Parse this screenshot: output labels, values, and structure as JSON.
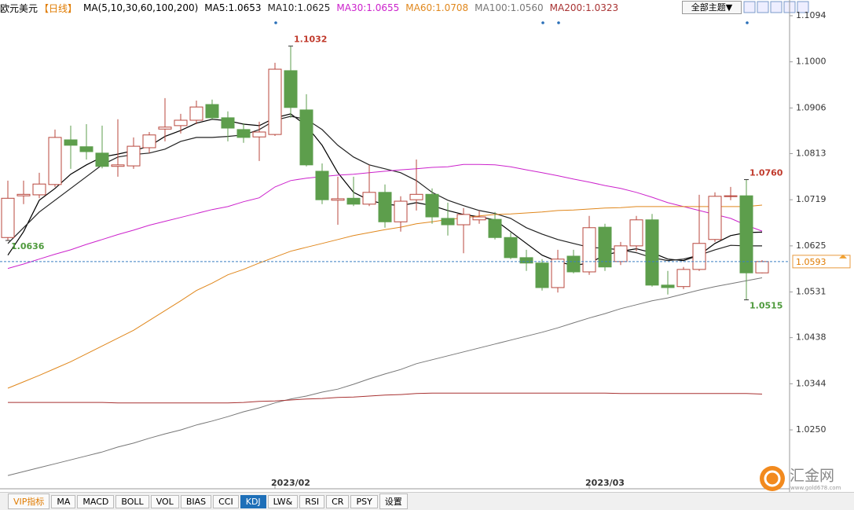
{
  "chart_data": {
    "type": "candlestick",
    "title": "欧元美元",
    "period": "【日线】",
    "indicator": "MA(5,10,30,60,100,200)",
    "theme_button": "全部主题▼",
    "categories": [
      null,
      null,
      null,
      null,
      null,
      null,
      null,
      null,
      null,
      null,
      null,
      null,
      null,
      null,
      null,
      null,
      null,
      null,
      "2023/02",
      null,
      null,
      null,
      null,
      null,
      null,
      null,
      null,
      null,
      null,
      null,
      null,
      null,
      null,
      null,
      null,
      null,
      null,
      null,
      "2023/03",
      null,
      null,
      null,
      null,
      null,
      null,
      null,
      null,
      null,
      null
    ],
    "open": [
      1.0642,
      1.0727,
      1.0729,
      1.075,
      1.0841,
      1.0827,
      1.0814,
      1.0787,
      1.0788,
      1.0825,
      1.0863,
      1.087,
      1.0881,
      1.0913,
      1.0886,
      1.0862,
      1.0847,
      1.0852,
      1.0982,
      1.0902,
      1.0777,
      1.0718,
      1.0722,
      1.071,
      1.0734,
      1.0674,
      1.0719,
      1.073,
      1.0681,
      1.0668,
      1.0678,
      1.0679,
      1.0642,
      1.0601,
      1.059,
      1.054,
      1.0604,
      1.0572,
      1.0663,
      1.0593,
      1.0625,
      1.0678,
      1.0545,
      1.0542,
      1.0577,
      1.0638,
      1.0726,
      1.0727,
      1.057
    ],
    "high": [
      1.0758,
      1.0758,
      1.0774,
      1.0862,
      1.087,
      1.0873,
      1.087,
      1.0883,
      1.0846,
      1.0857,
      1.0926,
      1.0894,
      1.0921,
      1.0923,
      1.0899,
      1.0875,
      1.0878,
      1.0998,
      1.1032,
      1.0934,
      1.0793,
      1.0766,
      1.0766,
      1.079,
      1.075,
      1.0726,
      1.0801,
      1.0742,
      1.0713,
      1.0702,
      1.0697,
      1.0694,
      1.0652,
      1.0617,
      1.0598,
      1.0617,
      1.0617,
      1.0686,
      1.067,
      1.0633,
      1.0686,
      1.069,
      1.0574,
      1.0582,
      1.0729,
      1.0734,
      1.0745,
      1.076,
      1.0596
    ],
    "low": [
      1.0636,
      1.071,
      1.0722,
      1.0745,
      1.0782,
      1.0801,
      1.0783,
      1.0766,
      1.0782,
      1.0814,
      1.0838,
      1.0854,
      1.0873,
      1.0883,
      1.0838,
      1.0835,
      1.0798,
      1.0849,
      1.0886,
      1.0787,
      1.071,
      1.0668,
      1.0706,
      1.0706,
      1.0662,
      1.0654,
      1.0697,
      1.067,
      1.0646,
      1.061,
      1.067,
      1.0638,
      1.0598,
      1.0574,
      1.0534,
      1.053,
      1.0569,
      1.0566,
      1.0574,
      1.0586,
      1.0614,
      1.0542,
      1.0526,
      1.0537,
      1.0574,
      1.0633,
      1.0718,
      1.0515,
      1.0569
    ],
    "close": [
      1.0722,
      1.073,
      1.0751,
      1.0846,
      1.083,
      1.0817,
      1.0787,
      1.079,
      1.0828,
      1.0851,
      1.0867,
      1.0881,
      1.0908,
      1.0886,
      1.0865,
      1.0846,
      1.0857,
      1.0985,
      1.0907,
      1.079,
      1.0719,
      1.0721,
      1.071,
      1.0734,
      1.0674,
      1.0716,
      1.073,
      1.0684,
      1.0668,
      1.0689,
      1.0684,
      1.0642,
      1.0601,
      1.059,
      1.054,
      1.0598,
      1.0572,
      1.0662,
      1.0582,
      1.0625,
      1.0678,
      1.0545,
      1.054,
      1.0577,
      1.063,
      1.0726,
      1.0727,
      1.057,
      1.0593
    ],
    "up_color": "#b8473d",
    "down_color": "#5d9e4c",
    "series": [
      {
        "name": "MA5:1.0653",
        "color": "#000000",
        "values": [
          1.0606,
          1.0654,
          1.0718,
          1.0742,
          1.0771,
          1.079,
          1.0806,
          1.0812,
          1.0819,
          1.0828,
          1.0848,
          1.086,
          1.0875,
          1.0883,
          1.088,
          1.0873,
          1.087,
          1.0886,
          1.0894,
          1.087,
          1.083,
          1.0774,
          1.0734,
          1.0718,
          1.071,
          1.0707,
          1.0713,
          1.0707,
          1.0697,
          1.0689,
          1.0684,
          1.0678,
          1.0654,
          1.063,
          1.0606,
          1.0593,
          1.0585,
          1.059,
          1.0606,
          1.0614,
          1.0619,
          1.0611,
          1.0598,
          1.0595,
          1.0606,
          1.063,
          1.0646,
          1.0652,
          1.0653
        ]
      },
      {
        "name": "MA10:1.0625",
        "color": "#222222",
        "values": [
          1.063,
          1.0662,
          1.0694,
          1.0718,
          1.0742,
          1.0766,
          1.079,
          1.0806,
          1.0811,
          1.0814,
          1.0822,
          1.0838,
          1.0846,
          1.0846,
          1.0848,
          1.0851,
          1.0862,
          1.0881,
          1.0889,
          1.0883,
          1.0862,
          1.083,
          1.0806,
          1.079,
          1.0782,
          1.0774,
          1.0758,
          1.0734,
          1.0718,
          1.0707,
          1.0697,
          1.0691,
          1.0681,
          1.0662,
          1.0649,
          1.0638,
          1.063,
          1.0622,
          1.062,
          1.0617,
          1.0611,
          1.0601,
          1.0595,
          1.0598,
          1.0606,
          1.0617,
          1.0626,
          1.0625,
          1.0625
        ]
      },
      {
        "name": "MA30:1.0655",
        "color": "#cc22cc",
        "values": [
          1.0579,
          1.0588,
          1.0598,
          1.0608,
          1.0617,
          1.0628,
          1.0638,
          1.0648,
          1.0657,
          1.0667,
          1.0675,
          1.0683,
          1.0691,
          1.0699,
          1.0705,
          1.0715,
          1.0723,
          1.0745,
          1.0758,
          1.0763,
          1.0766,
          1.0769,
          1.0771,
          1.0774,
          1.0777,
          1.078,
          1.0782,
          1.0785,
          1.0786,
          1.0791,
          1.0791,
          1.079,
          1.0786,
          1.078,
          1.0774,
          1.0768,
          1.0761,
          1.0755,
          1.0748,
          1.0742,
          1.0734,
          1.0724,
          1.0713,
          1.0705,
          1.0697,
          1.0689,
          1.0681,
          1.0667,
          1.0655
        ]
      },
      {
        "name": "MA60:1.0708",
        "color": "#e0871c",
        "values": [
          1.0335,
          1.0348,
          1.0361,
          1.0375,
          1.0389,
          1.0405,
          1.0421,
          1.0437,
          1.0453,
          1.0473,
          1.0493,
          1.0513,
          1.0534,
          1.0549,
          1.0566,
          1.0577,
          1.059,
          1.0602,
          1.0614,
          1.0622,
          1.063,
          1.0638,
          1.0646,
          1.0652,
          1.0658,
          1.0663,
          1.067,
          1.0674,
          1.0679,
          1.0682,
          1.0686,
          1.0689,
          1.069,
          1.0692,
          1.0694,
          1.0697,
          1.0698,
          1.07,
          1.0702,
          1.0703,
          1.0705,
          1.0705,
          1.0705,
          1.0705,
          1.0705,
          1.0705,
          1.0705,
          1.0705,
          1.0708
        ]
      },
      {
        "name": "MA100:1.0560",
        "color": "#777777",
        "values": [
          1.0157,
          1.0165,
          1.0173,
          1.0181,
          1.0189,
          1.0197,
          1.0205,
          1.0215,
          1.0223,
          1.0233,
          1.0242,
          1.025,
          1.026,
          1.0268,
          1.0277,
          1.0287,
          1.0295,
          1.0305,
          1.0313,
          1.0319,
          1.0327,
          1.0333,
          1.0343,
          1.0354,
          1.0364,
          1.0373,
          1.0385,
          1.0393,
          1.0401,
          1.0409,
          1.0417,
          1.0425,
          1.0433,
          1.0441,
          1.0449,
          1.0458,
          1.0468,
          1.0478,
          1.0487,
          1.0497,
          1.0505,
          1.0513,
          1.0519,
          1.0527,
          1.0535,
          1.0542,
          1.0548,
          1.0554,
          1.056
        ]
      },
      {
        "name": "MA200:1.0323",
        "color": "#a83232",
        "values": [
          1.0306,
          1.0306,
          1.0306,
          1.0306,
          1.0306,
          1.0306,
          1.0306,
          1.0305,
          1.0305,
          1.0305,
          1.0305,
          1.0305,
          1.0305,
          1.0305,
          1.0305,
          1.0306,
          1.0308,
          1.0309,
          1.0311,
          1.0313,
          1.0314,
          1.0316,
          1.0317,
          1.0319,
          1.0321,
          1.0322,
          1.0324,
          1.0325,
          1.0325,
          1.0325,
          1.0325,
          1.0325,
          1.0325,
          1.0325,
          1.0325,
          1.0325,
          1.0325,
          1.0325,
          1.0325,
          1.0324,
          1.0324,
          1.0324,
          1.0324,
          1.0324,
          1.0324,
          1.0324,
          1.0324,
          1.0324,
          1.0323
        ]
      }
    ],
    "annotations": [
      {
        "value": 1.1032,
        "label": "1.1032"
      },
      {
        "value": 1.076,
        "label": "1.0760"
      },
      {
        "value": 1.0515,
        "label": "1.0515"
      },
      {
        "value": 1.0636,
        "label": "1.0636"
      }
    ],
    "current_price": 1.0593,
    "ylim": [
      1.013,
      1.1126
    ],
    "yticks": [
      1.1094,
      {
        "value": 1.1,
        "label": "1.1000"
      },
      1.0906,
      1.0813,
      1.0719,
      1.0625,
      1.0531,
      1.0438,
      1.0344,
      {
        "value": 1.025,
        "label": "1.0250"
      }
    ],
    "grid": false,
    "tabs": [
      "VIP指标",
      "MA",
      "MACD",
      "BOLL",
      "VOL",
      "BIAS",
      "CCI",
      "KDJ",
      "LW&",
      "RSI",
      "CR",
      "PSY",
      "设置"
    ],
    "selected_tab": "KDJ",
    "watermark": "汇金网",
    "watermark_url": "www.gold678.com"
  }
}
